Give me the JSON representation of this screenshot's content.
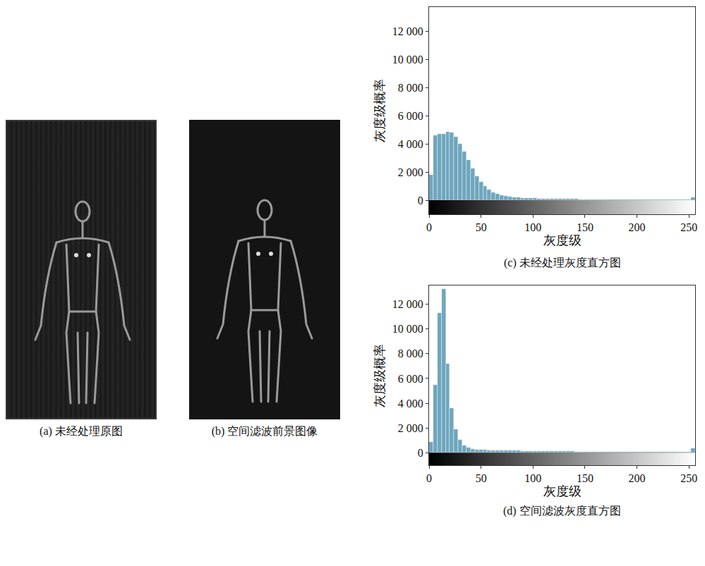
{
  "images": [
    {
      "caption": "(a) 未经处理原图"
    },
    {
      "caption": "(b) 空间滤波前景图像"
    }
  ],
  "chart_data": [
    {
      "type": "histogram",
      "title": "(c) 未经处理灰度直方图",
      "x_label": "灰度级",
      "y_label": "灰度级概率",
      "color": "#6ea6bd",
      "bins": [
        0,
        4,
        8,
        12,
        16,
        20,
        24,
        28,
        32,
        36,
        40,
        44,
        48,
        52,
        56,
        60,
        64,
        68,
        72,
        76,
        80,
        84,
        88,
        92,
        96,
        100,
        104,
        108,
        112,
        116,
        120,
        124,
        128,
        132,
        136,
        140,
        144,
        148,
        152,
        156,
        160,
        164,
        168,
        172,
        176,
        180,
        184,
        188,
        192,
        196,
        200,
        204,
        208,
        212,
        216,
        220,
        224,
        228,
        232,
        236,
        240,
        244,
        248,
        252,
        256
      ],
      "values": [
        1800,
        4600,
        4700,
        4700,
        4850,
        4800,
        4500,
        4000,
        3450,
        2850,
        2250,
        1700,
        1300,
        980,
        730,
        560,
        450,
        360,
        300,
        250,
        215,
        185,
        165,
        150,
        138,
        128,
        120,
        113,
        107,
        101,
        96,
        92,
        88,
        84,
        80,
        77,
        74,
        71,
        68,
        66,
        64,
        62,
        60,
        58,
        56,
        54,
        52,
        50,
        48,
        47,
        46,
        45,
        44,
        43,
        42,
        41,
        40,
        39,
        38,
        37,
        36,
        35,
        34,
        200
      ],
      "xlim": [
        0,
        256
      ],
      "xticks": [
        0,
        50,
        100,
        150,
        200,
        250
      ],
      "ylim": [
        -1000,
        13700
      ],
      "yticks": [
        0,
        {
          "value": 2000,
          "label": "2 000"
        },
        {
          "value": 4000,
          "label": "4 000"
        },
        {
          "value": 6000,
          "label": "6 000"
        },
        {
          "value": 8000,
          "label": "8 000"
        },
        {
          "value": 10000,
          "label": "10 000"
        },
        {
          "value": 12000,
          "label": "12 000"
        }
      ],
      "grid": false
    },
    {
      "type": "histogram",
      "title": "(d) 空间滤波灰度直方图",
      "x_label": "灰度级",
      "y_label": "灰度级概率",
      "color": "#6ea6bd",
      "bins": [
        0,
        4,
        8,
        12,
        16,
        20,
        24,
        28,
        32,
        36,
        40,
        44,
        48,
        52,
        56,
        60,
        64,
        68,
        72,
        76,
        80,
        84,
        88,
        92,
        96,
        100,
        104,
        108,
        112,
        116,
        120,
        124,
        128,
        132,
        136,
        140,
        144,
        148,
        152,
        156,
        160,
        164,
        168,
        172,
        176,
        180,
        184,
        188,
        192,
        196,
        200,
        204,
        208,
        212,
        216,
        220,
        224,
        228,
        232,
        236,
        240,
        244,
        248,
        252,
        256
      ],
      "values": [
        900,
        5500,
        11300,
        13200,
        7200,
        3600,
        1900,
        1050,
        620,
        410,
        315,
        270,
        245,
        230,
        220,
        210,
        200,
        192,
        185,
        178,
        172,
        166,
        160,
        155,
        150,
        145,
        140,
        136,
        132,
        128,
        124,
        120,
        117,
        114,
        111,
        108,
        105,
        102,
        99,
        96,
        93,
        90,
        88,
        86,
        84,
        82,
        80,
        78,
        76,
        74,
        72,
        70,
        68,
        66,
        64,
        62,
        60,
        58,
        56,
        54,
        52,
        50,
        48,
        350
      ],
      "xlim": [
        0,
        256
      ],
      "xticks": [
        0,
        50,
        100,
        150,
        200,
        250
      ],
      "ylim": [
        -1000,
        13500
      ],
      "yticks": [
        0,
        {
          "value": 2000,
          "label": "2 000"
        },
        {
          "value": 4000,
          "label": "4 000"
        },
        {
          "value": 6000,
          "label": "6 000"
        },
        {
          "value": 8000,
          "label": "8 000"
        },
        {
          "value": 10000,
          "label": "10 000"
        },
        {
          "value": 12000,
          "label": "12 000"
        }
      ],
      "grid": false
    }
  ]
}
